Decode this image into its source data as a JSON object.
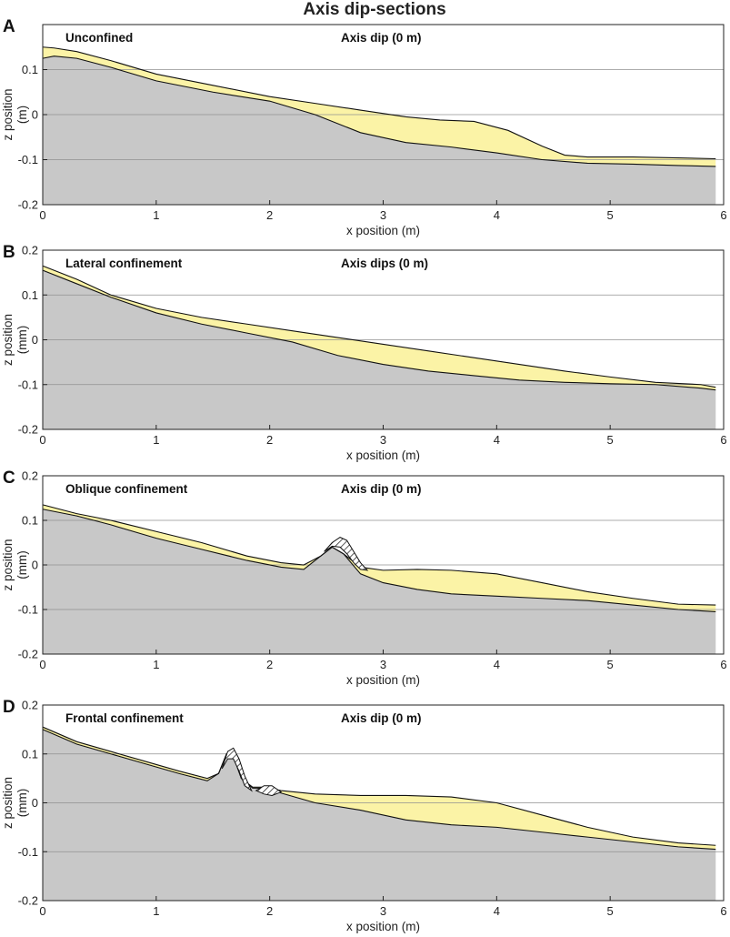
{
  "title": "Axis dip-sections",
  "colors": {
    "substrate": "#c8c8c8",
    "deposit": "#fbf3a6",
    "grid": "#909090",
    "outline": "#111111"
  },
  "chart_data": [
    {
      "type": "area",
      "panel": "A",
      "title": "Unconfined",
      "annotation": "Axis dip (0 m)",
      "xlabel": "x position (m)",
      "ylabel": [
        "z position",
        "(m)"
      ],
      "xlim": [
        0,
        6
      ],
      "ylim": [
        -0.2,
        0.2
      ],
      "xticks": [
        "0",
        "1",
        "2",
        "3",
        "4",
        "5",
        "6"
      ],
      "yticks": [
        "0.1",
        "0",
        "-0.1",
        "-0.2"
      ],
      "base": {
        "x": [
          0,
          0.1,
          0.3,
          0.6,
          1.0,
          1.5,
          2.0,
          2.4,
          2.8,
          3.2,
          3.6,
          4.0,
          4.4,
          4.8,
          5.2,
          5.6,
          5.93
        ],
        "z": [
          0.125,
          0.13,
          0.125,
          0.105,
          0.075,
          0.05,
          0.03,
          0.0,
          -0.04,
          -0.062,
          -0.072,
          -0.085,
          -0.1,
          -0.108,
          -0.11,
          -0.113,
          -0.115
        ]
      },
      "top": {
        "x": [
          0,
          0.1,
          0.3,
          0.6,
          1.0,
          1.5,
          2.0,
          2.4,
          2.8,
          3.2,
          3.5,
          3.8,
          4.1,
          4.4,
          4.6,
          4.8,
          5.2,
          5.6,
          5.93
        ],
        "z": [
          0.15,
          0.148,
          0.14,
          0.12,
          0.09,
          0.065,
          0.04,
          0.025,
          0.01,
          -0.005,
          -0.012,
          -0.015,
          -0.035,
          -0.07,
          -0.09,
          -0.094,
          -0.094,
          -0.096,
          -0.098
        ]
      },
      "mounds": []
    },
    {
      "type": "area",
      "panel": "B",
      "title": "Lateral confinement",
      "annotation": "Axis dips (0 m)",
      "xlabel": "x position (m)",
      "ylabel": [
        "z position",
        "(mm)"
      ],
      "xlim": [
        0,
        6
      ],
      "ylim": [
        -0.2,
        0.2
      ],
      "xticks": [
        "0",
        "1",
        "2",
        "3",
        "4",
        "5",
        "6"
      ],
      "yticks": [
        "0.2",
        "0.1",
        "0",
        "-0.1",
        "-0.2"
      ],
      "base": {
        "x": [
          0,
          0.3,
          0.6,
          1.0,
          1.4,
          1.8,
          2.2,
          2.6,
          3.0,
          3.4,
          3.8,
          4.2,
          4.6,
          5.0,
          5.4,
          5.8,
          5.93
        ],
        "z": [
          0.155,
          0.125,
          0.095,
          0.06,
          0.035,
          0.015,
          -0.005,
          -0.035,
          -0.055,
          -0.07,
          -0.08,
          -0.09,
          -0.095,
          -0.098,
          -0.1,
          -0.108,
          -0.112
        ]
      },
      "top": {
        "x": [
          0,
          0.3,
          0.6,
          1.0,
          1.4,
          1.8,
          2.2,
          2.6,
          3.0,
          3.4,
          3.8,
          4.2,
          4.6,
          5.0,
          5.4,
          5.8,
          5.93
        ],
        "z": [
          0.165,
          0.135,
          0.1,
          0.07,
          0.05,
          0.035,
          0.02,
          0.005,
          -0.01,
          -0.025,
          -0.04,
          -0.055,
          -0.07,
          -0.083,
          -0.095,
          -0.1,
          -0.106
        ]
      },
      "mounds": []
    },
    {
      "type": "area",
      "panel": "C",
      "title": "Oblique confinement",
      "annotation": "Axis dip (0 m)",
      "xlabel": "x position (m)",
      "ylabel": [
        "z position",
        "(mm)"
      ],
      "xlim": [
        0,
        6
      ],
      "ylim": [
        -0.2,
        0.2
      ],
      "xticks": [
        "0",
        "1",
        "2",
        "3",
        "4",
        "5",
        "6"
      ],
      "yticks": [
        "0.2",
        "0.1",
        "0",
        "-0.1",
        "-0.2"
      ],
      "base": {
        "x": [
          0,
          0.3,
          0.6,
          1.0,
          1.4,
          1.8,
          2.1,
          2.3,
          2.45,
          2.55,
          2.65,
          2.8,
          3.0,
          3.3,
          3.6,
          4.0,
          4.4,
          4.8,
          5.2,
          5.6,
          5.93
        ],
        "z": [
          0.125,
          0.11,
          0.09,
          0.06,
          0.035,
          0.01,
          -0.005,
          -0.01,
          0.02,
          0.04,
          0.025,
          -0.02,
          -0.04,
          -0.055,
          -0.065,
          -0.07,
          -0.075,
          -0.08,
          -0.09,
          -0.1,
          -0.105
        ]
      },
      "top": {
        "x": [
          0,
          0.3,
          0.6,
          1.0,
          1.4,
          1.8,
          2.1,
          2.3,
          2.45,
          2.55,
          2.65,
          2.8,
          3.0,
          3.3,
          3.6,
          4.0,
          4.4,
          4.8,
          5.2,
          5.6,
          5.93
        ],
        "z": [
          0.135,
          0.115,
          0.1,
          0.075,
          0.05,
          0.02,
          0.005,
          0.0,
          0.02,
          0.04,
          0.025,
          -0.005,
          -0.012,
          -0.01,
          -0.012,
          -0.02,
          -0.04,
          -0.06,
          -0.075,
          -0.088,
          -0.09
        ]
      },
      "mounds": [
        {
          "x": [
            2.48,
            2.55,
            2.62,
            2.68,
            2.74,
            2.8,
            2.86
          ],
          "top": [
            0.03,
            0.05,
            0.062,
            0.055,
            0.03,
            0.005,
            -0.012
          ],
          "bottom": [
            0.03,
            0.042,
            0.04,
            0.025,
            0.005,
            -0.01,
            -0.012
          ]
        }
      ]
    },
    {
      "type": "area",
      "panel": "D",
      "title": "Frontal confinement",
      "annotation": "Axis dip (0 m)",
      "xlabel": "x position (m)",
      "ylabel": [
        "z position",
        "(mm)"
      ],
      "xlim": [
        0,
        6
      ],
      "ylim": [
        -0.2,
        0.2
      ],
      "xticks": [
        "0",
        "1",
        "2",
        "3",
        "4",
        "5",
        "6"
      ],
      "yticks": [
        "0.2",
        "0.1",
        "0",
        "-0.1",
        "-0.2"
      ],
      "base": {
        "x": [
          0,
          0.3,
          0.6,
          0.9,
          1.2,
          1.45,
          1.55,
          1.62,
          1.68,
          1.75,
          1.85,
          1.95,
          2.1,
          2.4,
          2.8,
          3.2,
          3.6,
          4.0,
          4.4,
          4.8,
          5.2,
          5.6,
          5.93
        ],
        "z": [
          0.15,
          0.12,
          0.1,
          0.08,
          0.06,
          0.045,
          0.06,
          0.1,
          0.095,
          0.05,
          0.03,
          0.03,
          0.02,
          0.0,
          -0.015,
          -0.035,
          -0.045,
          -0.05,
          -0.06,
          -0.07,
          -0.08,
          -0.09,
          -0.095
        ]
      },
      "top": {
        "x": [
          0,
          0.3,
          0.6,
          0.9,
          1.2,
          1.45,
          1.55,
          1.62,
          1.68,
          1.75,
          1.85,
          1.95,
          2.1,
          2.4,
          2.8,
          3.2,
          3.6,
          4.0,
          4.4,
          4.8,
          5.2,
          5.6,
          5.93
        ],
        "z": [
          0.155,
          0.125,
          0.105,
          0.085,
          0.065,
          0.05,
          0.06,
          0.1,
          0.095,
          0.05,
          0.032,
          0.032,
          0.025,
          0.018,
          0.015,
          0.015,
          0.012,
          0.0,
          -0.025,
          -0.05,
          -0.07,
          -0.082,
          -0.087
        ]
      },
      "mounds": [
        {
          "x": [
            1.58,
            1.63,
            1.68,
            1.73,
            1.78,
            1.84
          ],
          "top": [
            0.07,
            0.105,
            0.112,
            0.09,
            0.055,
            0.025
          ],
          "bottom": [
            0.07,
            0.09,
            0.09,
            0.065,
            0.035,
            0.025
          ]
        },
        {
          "x": [
            1.88,
            1.95,
            2.02,
            2.1
          ],
          "top": [
            0.025,
            0.035,
            0.035,
            0.022
          ],
          "bottom": [
            0.025,
            0.018,
            0.015,
            0.022
          ]
        }
      ]
    }
  ]
}
